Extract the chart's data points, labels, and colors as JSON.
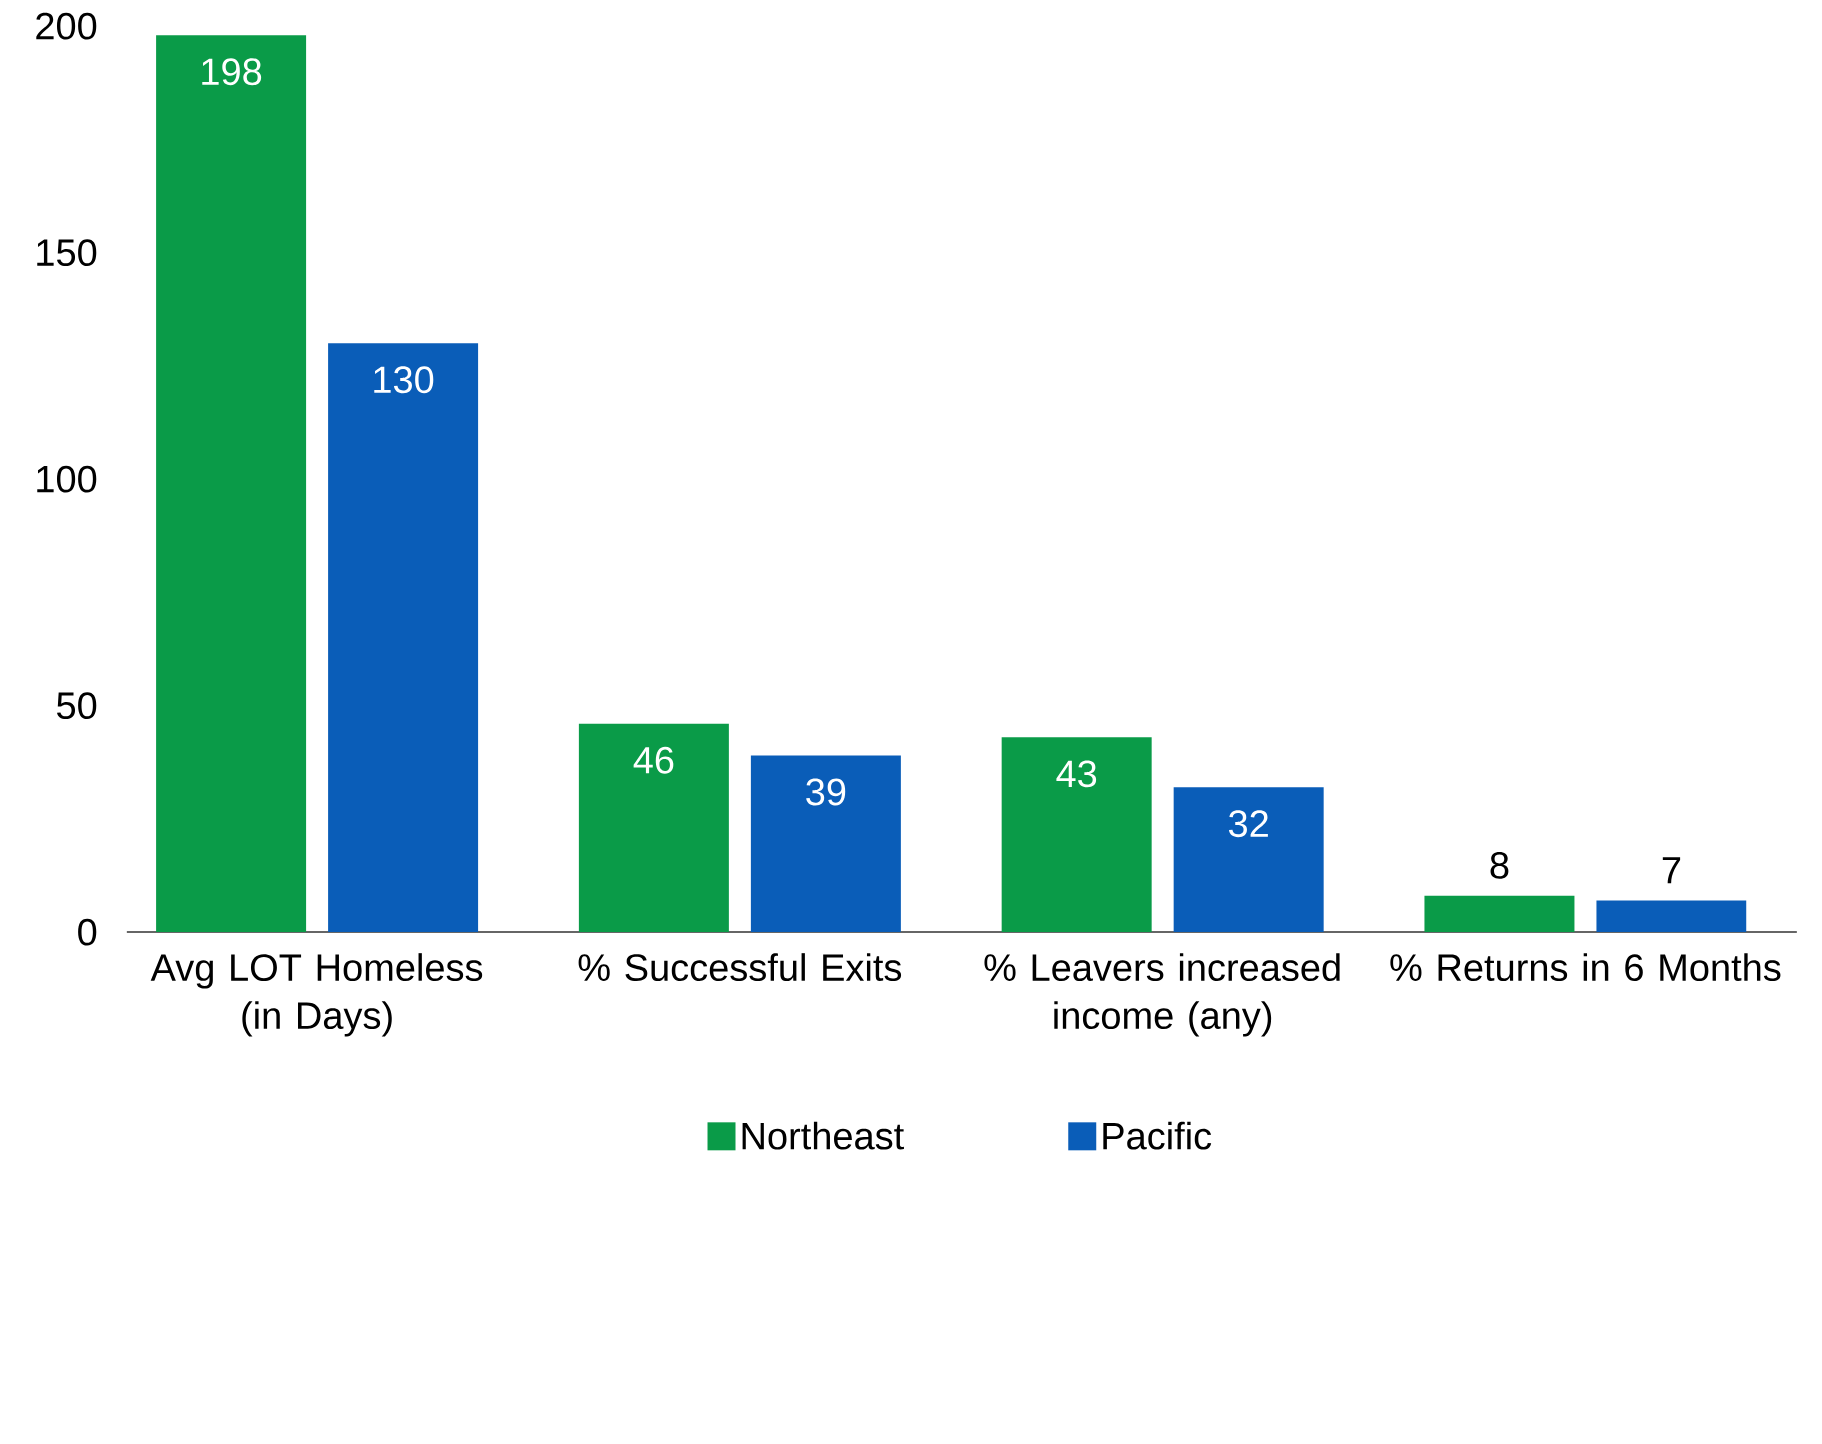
{
  "chart_data": {
    "type": "bar",
    "categories": [
      "Avg LOT Homeless (in Days)",
      "% Successful Exits",
      "% Leavers increased income (any)",
      "% Returns in 6 Months"
    ],
    "series": [
      {
        "name": "Northeast",
        "color": "#0a9b48",
        "values": [
          198,
          46,
          43,
          8
        ]
      },
      {
        "name": "Pacific",
        "color": "#0a5db8",
        "values": [
          130,
          39,
          32,
          7
        ]
      }
    ],
    "ylim": [
      0,
      200
    ],
    "yticks": [
      0,
      50,
      100,
      150,
      200
    ],
    "data_labels": true,
    "legend": "bottom",
    "grid": false
  }
}
